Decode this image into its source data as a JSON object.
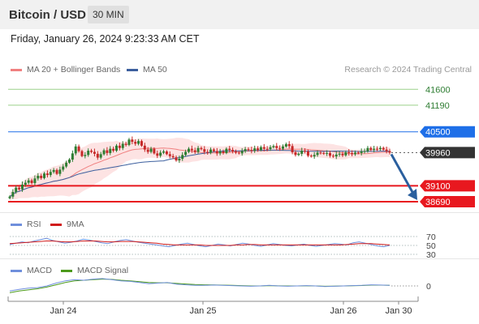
{
  "header": {
    "title": "Bitcoin / USD",
    "timeframe": "30 MIN"
  },
  "datetime": "Friday, January 26, 2024 9:23:33 AM CET",
  "legend": {
    "bb_label": "MA 20 + Bollinger Bands",
    "ma50_label": "MA 50",
    "credit": "Research © 2024 Trading Central",
    "rsi_label": "RSI",
    "rsi_ma_label": "9MA",
    "macd_label": "MACD",
    "macd_signal_label": "MACD Signal"
  },
  "colors": {
    "bb_line": "#f08080",
    "bb_fill": "#fde3e3",
    "ma50": "#3c5f9e",
    "up": "#2e7d32",
    "down": "#c62828",
    "resistance_blue": "#1e6fe8",
    "support_red": "#e8181f",
    "target_green": "#9bd08a",
    "current_dark": "#333333",
    "rsi": "#6f8fdc",
    "rsi_ma": "#d01b1b",
    "macd": "#6f8fdc",
    "macd_signal": "#4c9a1c",
    "arrow": "#2a5f9e"
  },
  "chart_data": {
    "type": "candlestick",
    "series_name": "Bitcoin / USD",
    "price_levels": [
      {
        "value": 41600,
        "label": "41600",
        "kind": "target"
      },
      {
        "value": 41190,
        "label": "41190",
        "kind": "target"
      },
      {
        "value": 40500,
        "label": "40500",
        "kind": "resistance"
      },
      {
        "value": 39960,
        "label": "39960",
        "kind": "current"
      },
      {
        "value": 39100,
        "label": "39100",
        "kind": "support"
      },
      {
        "value": 38690,
        "label": "38690",
        "kind": "support"
      }
    ],
    "price_ylim": [
      38500,
      41900
    ],
    "x_labels": [
      "Jan 24",
      "Jan 25",
      "Jan 26",
      "Jan 30"
    ],
    "close": [
      38820,
      38940,
      39050,
      39010,
      39130,
      39180,
      39240,
      39170,
      39290,
      39360,
      39300,
      39420,
      39380,
      39460,
      39510,
      39410,
      39520,
      39600,
      39700,
      39780,
      39940,
      40120,
      40000,
      39870,
      39900,
      40010,
      39980,
      39930,
      39830,
      39920,
      40020,
      39950,
      40060,
      40010,
      40140,
      40080,
      40190,
      40160,
      40300,
      40240,
      40190,
      40260,
      40140,
      40040,
      39980,
      40060,
      39940,
      39880,
      39960,
      39990,
      39920,
      39870,
      39840,
      39760,
      39800,
      39900,
      39980,
      40060,
      40020,
      39980,
      40080,
      40050,
      39980,
      39960,
      40040,
      40000,
      39940,
      39990,
      39950,
      40060,
      40030,
      39990,
      39960,
      39940,
      40000,
      40050,
      40030,
      40010,
      40070,
      40030,
      40100,
      40060,
      40050,
      40100,
      40130,
      40080,
      40060,
      40120,
      40180,
      40130,
      39970,
      39900,
      39930,
      40010,
      39990,
      39880,
      39860,
      39900,
      39960,
      39950,
      39930,
      39950,
      39880,
      39860,
      39910,
      39930,
      39890,
      39970,
      39950,
      39920,
      39960,
      39950,
      39990,
      40000,
      40080,
      40030,
      40060,
      40050,
      40080,
      40040,
      40000,
      39960
    ],
    "rsi_levels": [
      70,
      50,
      30
    ],
    "rsi_values": [
      52,
      55,
      58,
      56,
      60,
      63,
      66,
      61,
      58,
      55,
      57,
      60,
      64,
      62,
      59,
      56,
      54,
      58,
      61,
      63,
      60,
      57,
      55,
      53,
      51,
      49,
      47,
      50,
      53,
      55,
      52,
      49,
      47,
      50,
      53,
      51,
      49,
      52,
      55,
      53,
      50,
      48,
      51,
      54,
      52,
      50,
      49,
      51,
      53,
      50,
      48,
      50,
      52,
      54,
      53,
      51,
      56,
      58,
      55,
      52,
      49,
      47,
      50
    ],
    "rsi_ma_values": [
      54,
      55,
      56,
      57,
      58,
      59,
      60,
      60,
      59,
      58,
      58,
      59,
      60,
      60,
      60,
      59,
      58,
      58,
      59,
      59,
      59,
      58,
      57,
      56,
      55,
      53,
      52,
      51,
      51,
      51,
      51,
      51,
      50,
      50,
      50,
      50,
      50,
      51,
      51,
      52,
      52,
      51,
      51,
      51,
      51,
      51,
      51,
      51,
      51,
      51,
      51,
      51,
      51,
      51,
      51,
      52,
      53,
      54,
      54,
      54,
      53,
      52,
      51
    ],
    "macd_zero_label": "0",
    "macd_values": [
      -0.9,
      -0.6,
      -0.4,
      -0.3,
      0.0,
      0.5,
      0.9,
      1.1,
      1.0,
      1.2,
      1.3,
      1.1,
      0.9,
      0.8,
      0.6,
      0.4,
      0.5,
      0.6,
      0.3,
      0.2,
      0.1,
      0.1,
      0.15,
      0.1,
      0.05,
      0.0,
      -0.05,
      0.0,
      0.1,
      0.0,
      -0.05,
      0.0,
      0.05,
      0.0,
      -0.1,
      -0.05,
      0.0,
      0.05,
      0.1,
      0.2,
      0.15,
      0.1
    ],
    "macd_signal_values": [
      -1.2,
      -0.9,
      -0.7,
      -0.5,
      -0.2,
      0.2,
      0.6,
      0.9,
      1.0,
      1.1,
      1.2,
      1.15,
      1.0,
      0.9,
      0.75,
      0.6,
      0.55,
      0.55,
      0.45,
      0.35,
      0.25,
      0.2,
      0.18,
      0.14,
      0.1,
      0.05,
      0.0,
      0.0,
      0.05,
      0.02,
      0.0,
      0.0,
      0.02,
      0.0,
      -0.05,
      -0.03,
      0.0,
      0.03,
      0.07,
      0.14,
      0.14,
      0.12
    ]
  }
}
